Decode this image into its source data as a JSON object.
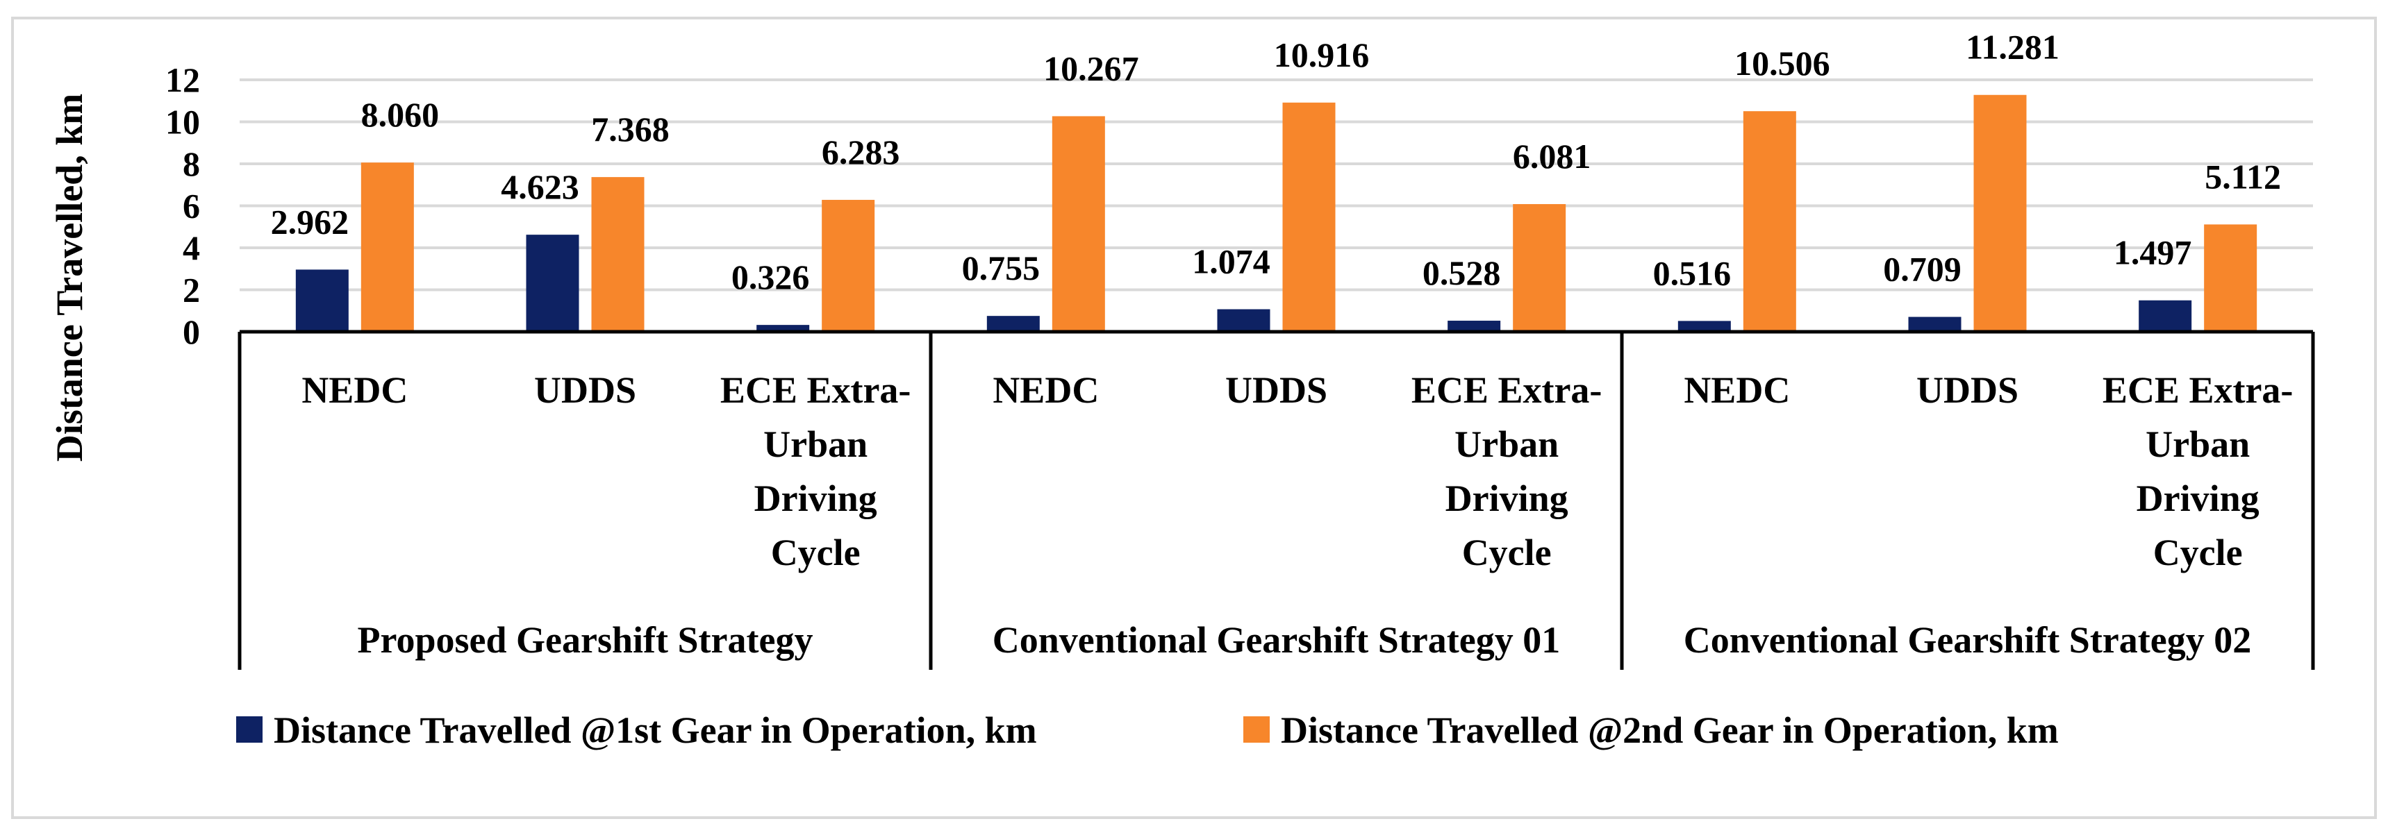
{
  "chart_data": {
    "type": "bar",
    "ylabel": "Distance Travelled, km",
    "ylim": [
      0,
      12
    ],
    "yticks": [
      0,
      2,
      4,
      6,
      8,
      10,
      12
    ],
    "grid": true,
    "legend_position": "bottom",
    "groups": [
      {
        "name": "Proposed Gearshift Strategy",
        "categories": [
          [
            "NEDC"
          ],
          [
            "UDDS"
          ],
          [
            "ECE Extra-",
            "Urban",
            "Driving",
            "Cycle"
          ]
        ]
      },
      {
        "name": "Conventional Gearshift Strategy 01",
        "categories": [
          [
            "NEDC"
          ],
          [
            "UDDS"
          ],
          [
            "ECE Extra-",
            "Urban",
            "Driving",
            "Cycle"
          ]
        ]
      },
      {
        "name": "Conventional Gearshift Strategy 02",
        "categories": [
          [
            "NEDC"
          ],
          [
            "UDDS"
          ],
          [
            "ECE Extra-",
            "Urban",
            "Driving",
            "Cycle"
          ]
        ]
      }
    ],
    "series": [
      {
        "name": "Distance Travelled @1st Gear in Operation, km",
        "color": "#0e2263",
        "values": [
          2.962,
          4.623,
          0.326,
          0.755,
          1.074,
          0.528,
          0.516,
          0.709,
          1.497
        ],
        "labels": [
          "2.962",
          "4.623",
          "0.326",
          "0.755",
          "1.074",
          "0.528",
          "0.516",
          "0.709",
          "1.497"
        ]
      },
      {
        "name": "Distance Travelled @2nd Gear in Operation, km",
        "color": "#f7862b",
        "values": [
          8.06,
          7.368,
          6.283,
          10.267,
          10.916,
          6.081,
          10.506,
          11.281,
          5.112
        ],
        "labels": [
          "8.060",
          "7.368",
          "6.283",
          "10.267",
          "10.916",
          "6.081",
          "10.506",
          "11.281",
          "5.112"
        ]
      }
    ]
  }
}
